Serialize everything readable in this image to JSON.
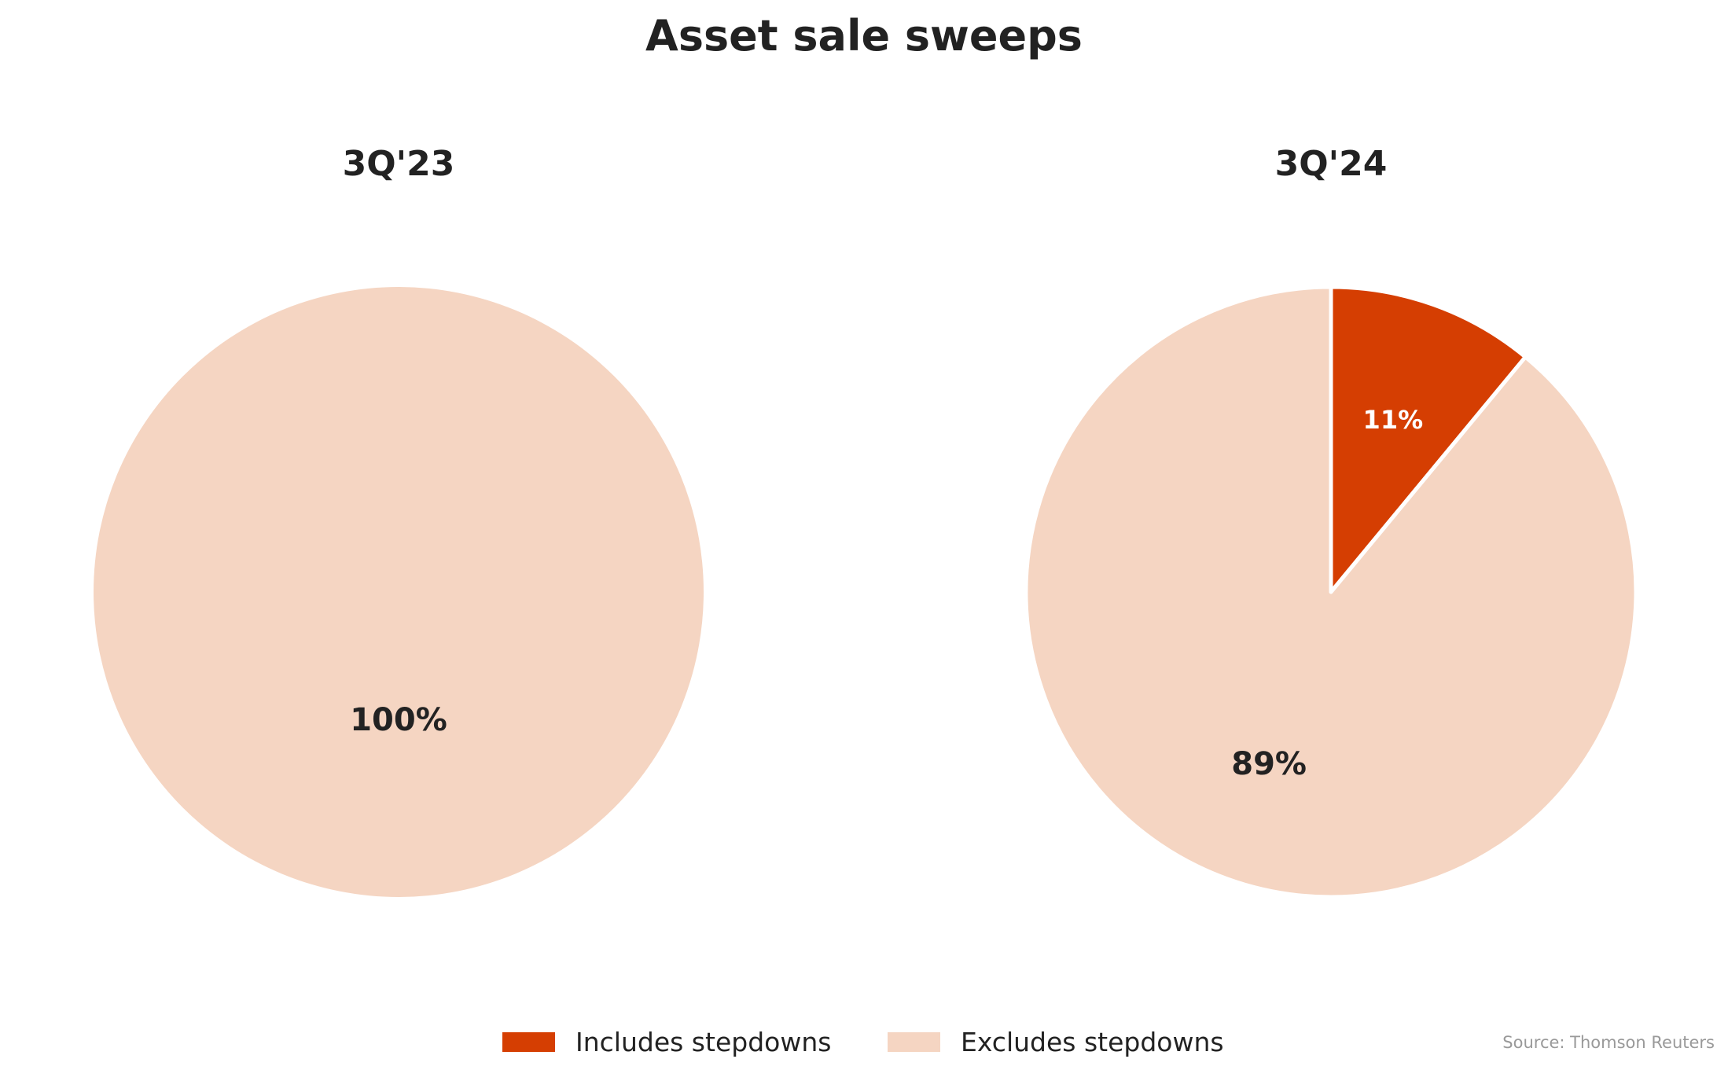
{
  "chart_data": {
    "type": "pie",
    "title": "Asset sale sweeps",
    "categories": [
      "Includes stepdowns",
      "Excludes stepdowns"
    ],
    "colors": {
      "Includes stepdowns": "#d53e02",
      "Excludes stepdowns": "#f5d5c2"
    },
    "label_colors": {
      "Includes stepdowns": "#ffffff",
      "Excludes stepdowns": "#222222"
    },
    "pies": [
      {
        "title": "3Q'23",
        "values": [
          0,
          100
        ],
        "labels": [
          "",
          "100%"
        ]
      },
      {
        "title": "3Q'24",
        "values": [
          11,
          89
        ],
        "labels": [
          "11%",
          "89%"
        ]
      }
    ],
    "legend": {
      "placement": "bottom",
      "entries": [
        "Includes stepdowns",
        "Excludes stepdowns"
      ]
    },
    "source": "Source: Thomson Reuters"
  }
}
